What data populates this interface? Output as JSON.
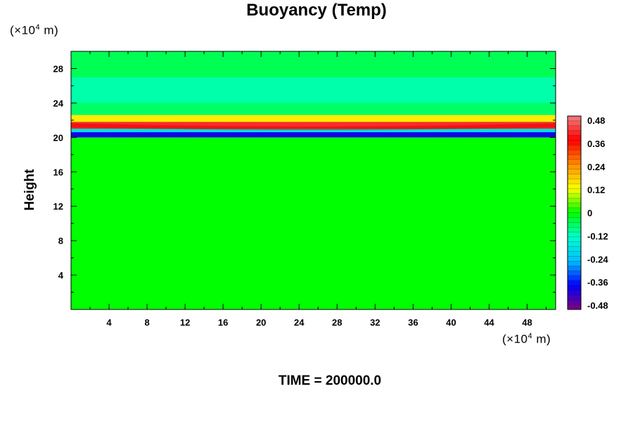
{
  "chart_data": {
    "type": "heatmap",
    "title": "Buoyancy (Temp)",
    "ylabel": "Height",
    "xlabel": "",
    "x_unit": {
      "prefix": "(×10",
      "exp": "4",
      "suffix": " m)"
    },
    "y_unit": {
      "prefix": "(×10",
      "exp": "4",
      "suffix": " m)"
    },
    "xlim": [
      0,
      51
    ],
    "ylim": [
      0,
      30
    ],
    "x_ticks": [
      4,
      8,
      12,
      16,
      20,
      24,
      28,
      32,
      36,
      40,
      44,
      48
    ],
    "y_ticks": [
      4,
      8,
      12,
      16,
      20,
      24,
      28
    ],
    "colorbar": {
      "range": [
        -0.48,
        0.48
      ],
      "labels": [
        "0.48",
        "0.36",
        "0.24",
        "0.12",
        "0",
        "-0.12",
        "-0.24",
        "-0.36",
        "-0.48"
      ],
      "colors": [
        "#f08080",
        "#ff0000",
        "#ff8c00",
        "#ffff00",
        "#00ff00",
        "#00ffcc",
        "#00bfff",
        "#0000ff",
        "#800080"
      ]
    },
    "field": {
      "background_value": 0,
      "bands": [
        {
          "y_start": 20.0,
          "y_end": 20.6,
          "value": -0.38,
          "description_x": "full width"
        },
        {
          "y_start": 20.6,
          "y_end": 21.0,
          "value": -0.18
        },
        {
          "y_start": 21.0,
          "y_end": 21.8,
          "value": 0.4
        },
        {
          "y_start": 21.8,
          "y_end": 22.6,
          "value": 0.14
        },
        {
          "y_start": 22.6,
          "y_end": 24.0,
          "value": -0.06
        },
        {
          "y_start": 24.0,
          "y_end": 27.0,
          "value": -0.1
        },
        {
          "y_start": 27.0,
          "y_end": 30.0,
          "value": -0.05
        }
      ]
    }
  },
  "footer": {
    "time_text": "TIME = 200000.0"
  }
}
